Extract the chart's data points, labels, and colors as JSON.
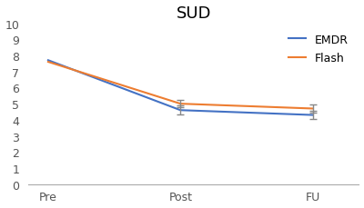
{
  "title": "SUD",
  "x_labels": [
    "Pre",
    "Post",
    "FU"
  ],
  "emdr_values": [
    7.7,
    4.6,
    4.3
  ],
  "flash_values": [
    7.6,
    5.0,
    4.7
  ],
  "emdr_errors": [
    0.0,
    0.28,
    0.25
  ],
  "flash_errors": [
    0.0,
    0.22,
    0.28
  ],
  "emdr_color": "#4472C4",
  "flash_color": "#ED7D31",
  "error_color": "#888888",
  "ylim": [
    0,
    10
  ],
  "yticks": [
    0,
    1,
    2,
    3,
    4,
    5,
    6,
    7,
    8,
    9,
    10
  ],
  "legend_labels": [
    "EMDR",
    "Flash"
  ],
  "title_fontsize": 13,
  "tick_fontsize": 9,
  "legend_fontsize": 9,
  "background_color": "#ffffff"
}
